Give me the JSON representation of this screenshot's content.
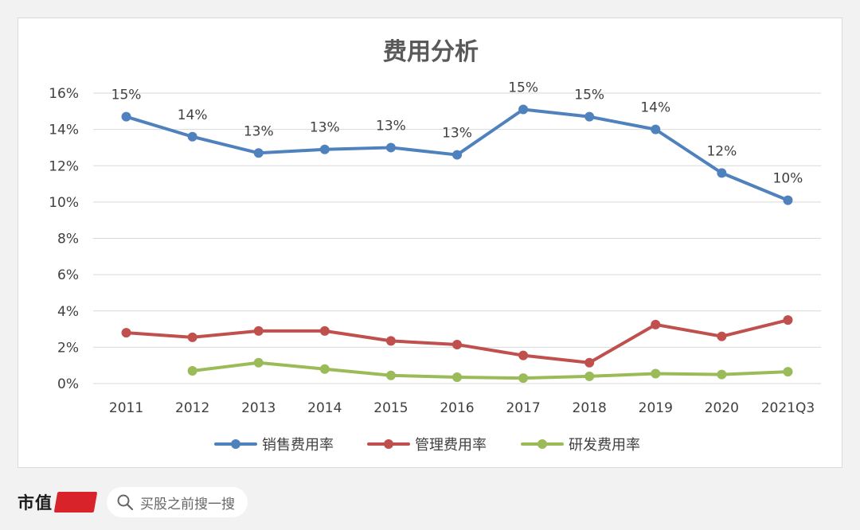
{
  "chart_data": {
    "type": "line",
    "title": "费用分析",
    "categories": [
      "2011",
      "2012",
      "2013",
      "2014",
      "2015",
      "2016",
      "2017",
      "2018",
      "2019",
      "2020",
      "2021Q3"
    ],
    "ylim": [
      0,
      16
    ],
    "yticks": [
      "0%",
      "2%",
      "4%",
      "6%",
      "8%",
      "10%",
      "12%",
      "14%",
      "16%"
    ],
    "grid": true,
    "legend_position": "bottom",
    "series": [
      {
        "name": "销售费用率",
        "color": "#4f81bd",
        "values": [
          14.7,
          13.6,
          12.7,
          12.9,
          13.0,
          12.6,
          15.1,
          14.7,
          14.0,
          11.6,
          10.1
        ],
        "labels": [
          "15%",
          "14%",
          "13%",
          "13%",
          "13%",
          "13%",
          "15%",
          "15%",
          "14%",
          "12%",
          "10%"
        ]
      },
      {
        "name": "管理费用率",
        "color": "#c0504d",
        "values": [
          2.8,
          2.55,
          2.9,
          2.9,
          2.35,
          2.15,
          1.55,
          1.15,
          3.25,
          2.6,
          3.5
        ]
      },
      {
        "name": "研发费用率",
        "color": "#9bbb59",
        "values": [
          null,
          0.7,
          1.15,
          0.8,
          0.45,
          0.35,
          0.3,
          0.4,
          0.55,
          0.5,
          0.65
        ]
      }
    ]
  },
  "footer": {
    "brand": "市值",
    "search_placeholder": "买股之前搜一搜"
  }
}
